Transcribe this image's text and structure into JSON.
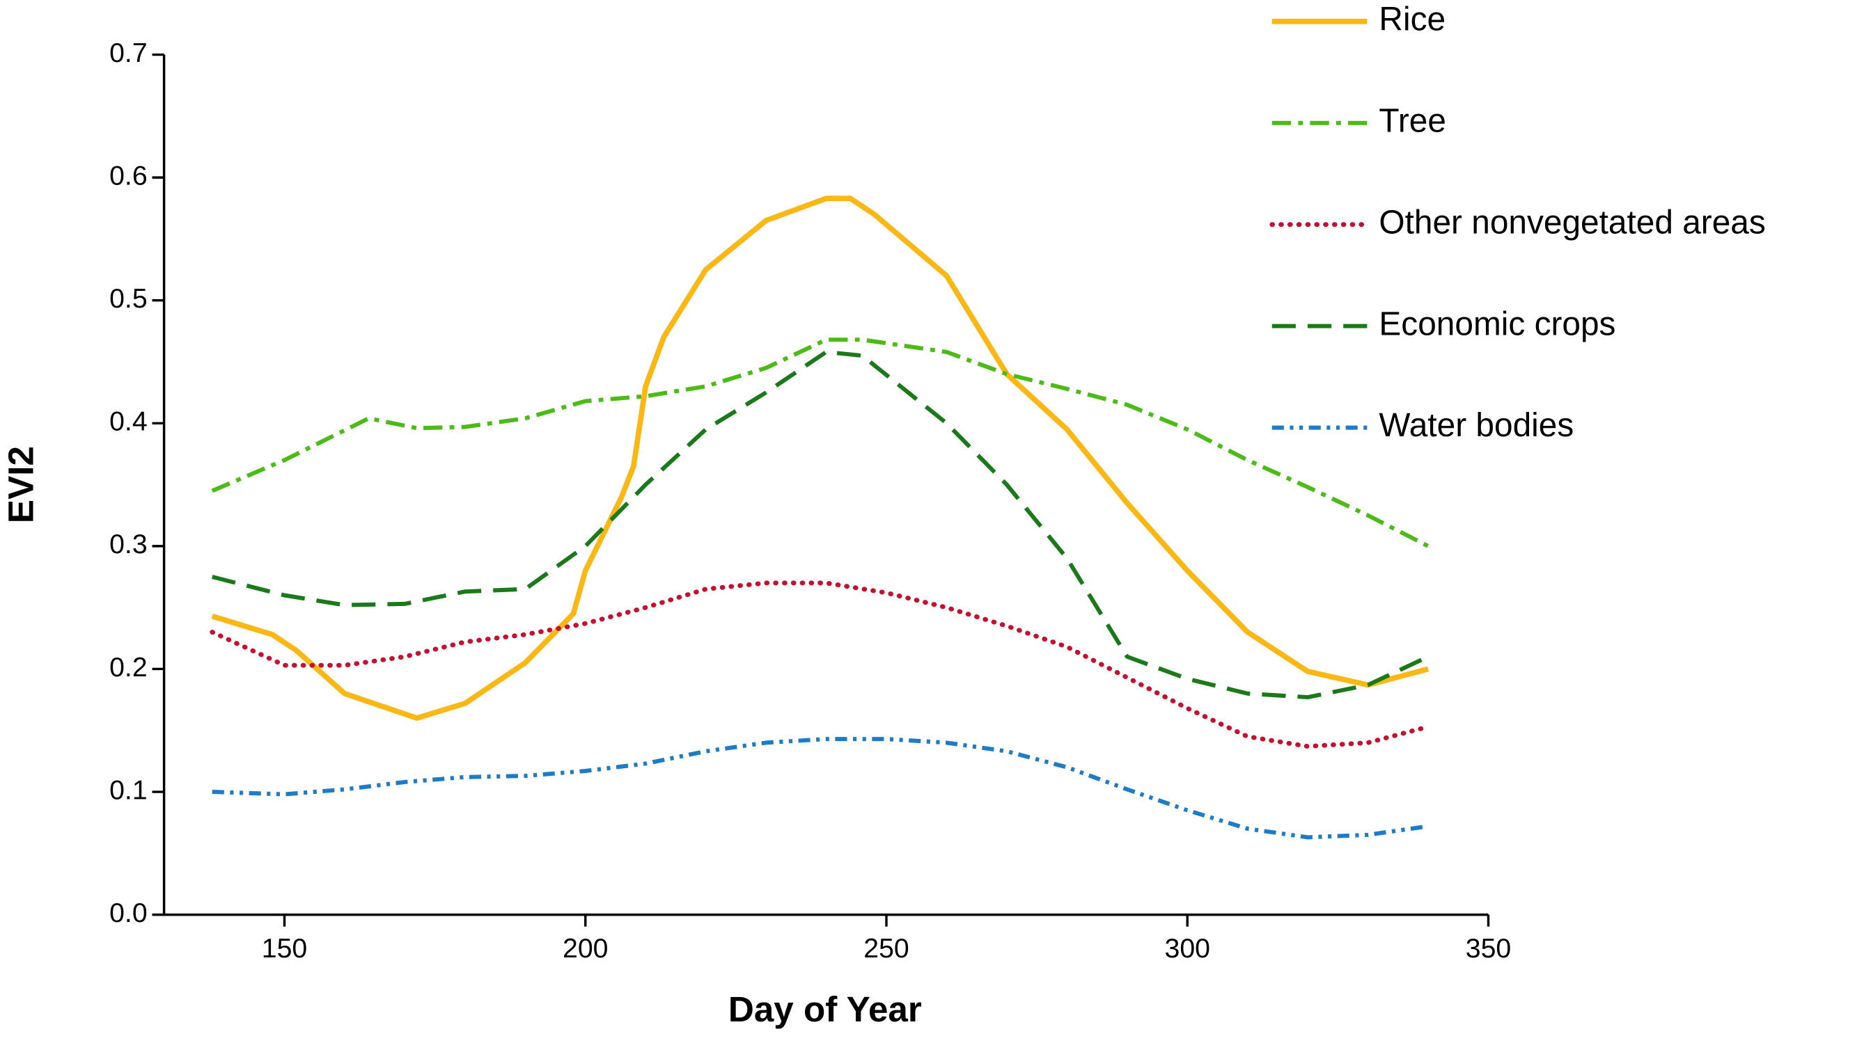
{
  "chart_data": {
    "type": "line",
    "x_label": "Day of Year",
    "y_label": "EVI2",
    "xlim": [
      130,
      350
    ],
    "xticks": [
      150,
      200,
      250,
      300,
      350
    ],
    "ylim": [
      0,
      0.7
    ],
    "yticks": [
      {
        "value": 0,
        "label": "0.0"
      },
      0.1,
      0.2,
      0.3,
      0.4,
      0.5,
      0.6,
      0.7
    ],
    "grid": false,
    "legend": "top-right",
    "series": [
      {
        "name": "Rice",
        "color": "#fbb714",
        "style": "solid",
        "x": [
          138,
          148,
          152,
          160,
          172,
          180,
          190,
          198,
          200,
          206,
          208,
          210,
          213,
          220,
          230,
          240,
          244,
          248,
          260,
          270,
          280,
          290,
          300,
          310,
          320,
          330,
          340
        ],
        "values": [
          0.243,
          0.228,
          0.215,
          0.18,
          0.16,
          0.172,
          0.205,
          0.245,
          0.28,
          0.34,
          0.365,
          0.43,
          0.47,
          0.525,
          0.565,
          0.583,
          0.583,
          0.57,
          0.52,
          0.44,
          0.395,
          0.335,
          0.28,
          0.23,
          0.198,
          0.187,
          0.2
        ]
      },
      {
        "name": "Tree",
        "color": "#4cbb17",
        "style": "dashdot",
        "x": [
          138,
          150,
          164,
          172,
          180,
          190,
          200,
          210,
          220,
          230,
          240,
          246,
          260,
          270,
          280,
          290,
          300,
          310,
          320,
          330,
          340
        ],
        "values": [
          0.345,
          0.37,
          0.404,
          0.396,
          0.397,
          0.404,
          0.418,
          0.422,
          0.43,
          0.445,
          0.468,
          0.468,
          0.458,
          0.44,
          0.428,
          0.415,
          0.395,
          0.37,
          0.348,
          0.325,
          0.3
        ]
      },
      {
        "name": "Other nonvegetated areas",
        "color": "#c8102e",
        "style": "dotted",
        "x": [
          138,
          150,
          160,
          170,
          180,
          190,
          200,
          210,
          220,
          230,
          240,
          250,
          260,
          270,
          280,
          290,
          300,
          310,
          320,
          330,
          340
        ],
        "values": [
          0.23,
          0.203,
          0.203,
          0.21,
          0.222,
          0.228,
          0.237,
          0.25,
          0.265,
          0.27,
          0.27,
          0.262,
          0.25,
          0.235,
          0.218,
          0.193,
          0.168,
          0.145,
          0.137,
          0.14,
          0.153
        ]
      },
      {
        "name": "Economic crops",
        "color": "#1a7a1a",
        "style": "dashed",
        "x": [
          138,
          150,
          160,
          170,
          180,
          190,
          200,
          210,
          220,
          230,
          240,
          246,
          260,
          270,
          280,
          290,
          300,
          310,
          320,
          330,
          340
        ],
        "values": [
          0.275,
          0.26,
          0.252,
          0.253,
          0.263,
          0.265,
          0.3,
          0.35,
          0.395,
          0.425,
          0.458,
          0.455,
          0.4,
          0.35,
          0.29,
          0.21,
          0.192,
          0.18,
          0.177,
          0.187,
          0.21
        ]
      },
      {
        "name": "Water bodies",
        "color": "#1e7bc8",
        "style": "dashdotdot",
        "x": [
          138,
          150,
          160,
          170,
          180,
          190,
          200,
          210,
          220,
          230,
          240,
          250,
          260,
          270,
          280,
          290,
          300,
          310,
          320,
          330,
          340
        ],
        "values": [
          0.1,
          0.098,
          0.102,
          0.108,
          0.112,
          0.113,
          0.117,
          0.123,
          0.133,
          0.14,
          0.143,
          0.143,
          0.14,
          0.133,
          0.12,
          0.102,
          0.085,
          0.07,
          0.063,
          0.065,
          0.072
        ]
      }
    ]
  }
}
